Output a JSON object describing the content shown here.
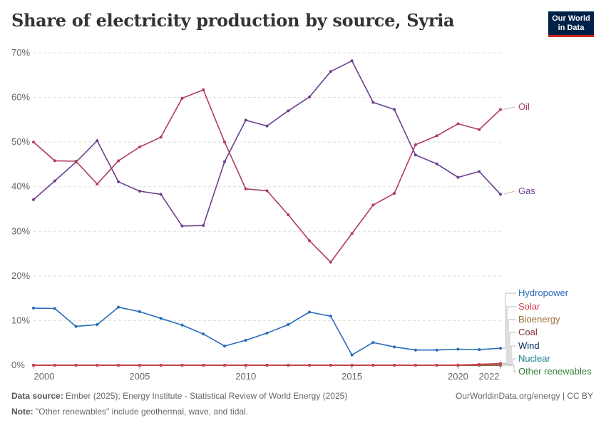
{
  "title": "Share of electricity production by source, Syria",
  "logo": {
    "line1": "Our World",
    "line2": "in Data"
  },
  "footer": {
    "source_label": "Data source:",
    "source_text": "Ember (2025); Energy Institute - Statistical Review of World Energy (2025)",
    "note_label": "Note:",
    "note_text": "\"Other renewables\" include geothermal, wave, and tidal.",
    "credit": "OurWorldinData.org/energy | CC BY"
  },
  "chart_data": {
    "type": "line",
    "title": "Share of electricity production by source, Syria",
    "xlabel": "",
    "ylabel": "",
    "xlim": [
      2000,
      2022
    ],
    "ylim": [
      0,
      70
    ],
    "y_ticks": [
      0,
      10,
      20,
      30,
      40,
      50,
      60,
      70
    ],
    "y_tick_labels": [
      "0%",
      "10%",
      "20%",
      "30%",
      "40%",
      "50%",
      "60%",
      "70%"
    ],
    "x_ticks": [
      2000,
      2005,
      2010,
      2015,
      2020,
      2022
    ],
    "grid": true,
    "legend": "right, inline labels",
    "x": [
      2000,
      2001,
      2002,
      2003,
      2004,
      2005,
      2006,
      2007,
      2008,
      2009,
      2010,
      2011,
      2012,
      2013,
      2014,
      2015,
      2016,
      2017,
      2018,
      2019,
      2020,
      2021,
      2022
    ],
    "series": [
      {
        "name": "Oil",
        "color": "#b13c59",
        "values": [
          50.0,
          45.8,
          45.7,
          40.6,
          45.8,
          48.9,
          51.1,
          59.8,
          61.7,
          50.0,
          39.5,
          39.1,
          33.7,
          27.9,
          23.1,
          29.5,
          35.9,
          38.5,
          49.4,
          51.4,
          54.1,
          52.8,
          57.3
        ]
      },
      {
        "name": "Gas",
        "color": "#6d3e91",
        "values": [
          37.1,
          41.3,
          45.5,
          50.3,
          41.1,
          39.0,
          38.3,
          31.2,
          31.3,
          45.6,
          54.9,
          53.6,
          57.0,
          60.1,
          65.8,
          68.2,
          58.9,
          57.3,
          47.1,
          45.1,
          42.1,
          43.4,
          38.3
        ]
      },
      {
        "name": "Hydropower",
        "color": "#286bbb",
        "values": [
          12.8,
          12.7,
          8.7,
          9.1,
          13.0,
          12.0,
          10.5,
          9.0,
          7.0,
          4.3,
          5.6,
          7.2,
          9.1,
          11.9,
          11.0,
          2.3,
          5.1,
          4.1,
          3.4,
          3.4,
          3.6,
          3.5,
          3.8
        ]
      },
      {
        "name": "Solar",
        "color": "#d73c50",
        "values": [
          0,
          0,
          0,
          0,
          0,
          0,
          0,
          0,
          0,
          0,
          0,
          0,
          0,
          0,
          0,
          0,
          0,
          0,
          0,
          0,
          0.05,
          0.2,
          0.4
        ]
      },
      {
        "name": "Bioenergy",
        "color": "#996d39",
        "values": [
          0,
          0,
          0,
          0,
          0,
          0,
          0,
          0,
          0,
          0,
          0,
          0,
          0,
          0,
          0,
          0,
          0,
          0,
          0,
          0,
          0,
          0,
          0
        ]
      },
      {
        "name": "Coal",
        "color": "#883039",
        "values": [
          0,
          0,
          0,
          0,
          0,
          0,
          0,
          0,
          0,
          0,
          0,
          0,
          0,
          0,
          0,
          0,
          0,
          0,
          0,
          0,
          0,
          0,
          0
        ]
      },
      {
        "name": "Wind",
        "color": "#00295b",
        "values": [
          0,
          0,
          0,
          0,
          0,
          0,
          0,
          0,
          0,
          0,
          0,
          0,
          0,
          0,
          0,
          0,
          0,
          0,
          0,
          0,
          0,
          0,
          0.1
        ]
      },
      {
        "name": "Nuclear",
        "color": "#18808c",
        "values": [
          0,
          0,
          0,
          0,
          0,
          0,
          0,
          0,
          0,
          0,
          0,
          0,
          0,
          0,
          0,
          0,
          0,
          0,
          0,
          0,
          0,
          0,
          0
        ]
      },
      {
        "name": "Other renewables",
        "color": "#38803c",
        "values": [
          0,
          0,
          0,
          0,
          0,
          0,
          0,
          0,
          0,
          0,
          0,
          0,
          0,
          0,
          0,
          0,
          0,
          0,
          0,
          0,
          0,
          0,
          0
        ]
      }
    ]
  }
}
